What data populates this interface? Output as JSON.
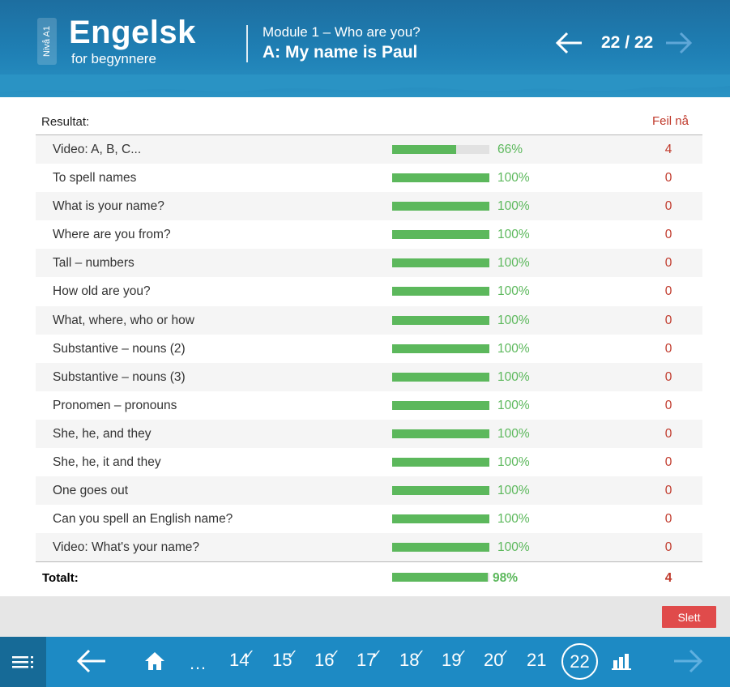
{
  "header": {
    "level": "Nivå A1",
    "course_title": "Engelsk",
    "course_subtitle": "for begynnere",
    "module": "Module 1 – Who are you?",
    "lesson": "A: My name is Paul",
    "page_counter": "22 / 22",
    "prev_icon": "arrow-left-icon",
    "next_icon": "arrow-right-icon"
  },
  "results": {
    "heading": "Resultat:",
    "errors_heading": "Feil nå",
    "rows": [
      {
        "name": "Video: A, B, C...",
        "progress": 0.66,
        "percent": "66%",
        "errors": "4"
      },
      {
        "name": "To spell names",
        "progress": 1.0,
        "percent": "100%",
        "errors": "0"
      },
      {
        "name": "What is your name?",
        "progress": 1.0,
        "percent": "100%",
        "errors": "0"
      },
      {
        "name": "Where are you from?",
        "progress": 1.0,
        "percent": "100%",
        "errors": "0"
      },
      {
        "name": "Tall – numbers",
        "progress": 1.0,
        "percent": "100%",
        "errors": "0"
      },
      {
        "name": "How old are you?",
        "progress": 1.0,
        "percent": "100%",
        "errors": "0"
      },
      {
        "name": "What, where, who or how",
        "progress": 1.0,
        "percent": "100%",
        "errors": "0"
      },
      {
        "name": "Substantive – nouns (2)",
        "progress": 1.0,
        "percent": "100%",
        "errors": "0"
      },
      {
        "name": "Substantive – nouns (3)",
        "progress": 1.0,
        "percent": "100%",
        "errors": "0"
      },
      {
        "name": "Pronomen – pronouns",
        "progress": 1.0,
        "percent": "100%",
        "errors": "0"
      },
      {
        "name": "She, he, and they",
        "progress": 1.0,
        "percent": "100%",
        "errors": "0"
      },
      {
        "name": "She, he, it and they",
        "progress": 1.0,
        "percent": "100%",
        "errors": "0"
      },
      {
        "name": "One goes out",
        "progress": 1.0,
        "percent": "100%",
        "errors": "0"
      },
      {
        "name": "Can you spell an English name?",
        "progress": 1.0,
        "percent": "100%",
        "errors": "0"
      },
      {
        "name": "Video: What's your name?",
        "progress": 1.0,
        "percent": "100%",
        "errors": "0"
      }
    ],
    "total": {
      "name": "Totalt:",
      "progress": 0.98,
      "percent": "98%",
      "errors": "4"
    }
  },
  "actions": {
    "delete_label": "Slett"
  },
  "bottom_nav": {
    "menu_icon": "menu-list-icon",
    "back_icon": "arrow-left-icon",
    "home_icon": "home-icon",
    "ellipsis": "…",
    "pages": [
      {
        "label": "14",
        "done": true
      },
      {
        "label": "15",
        "done": true
      },
      {
        "label": "16",
        "done": true
      },
      {
        "label": "17",
        "done": true
      },
      {
        "label": "18",
        "done": true
      },
      {
        "label": "19",
        "done": true
      },
      {
        "label": "20",
        "done": true
      },
      {
        "label": "21",
        "done": false
      }
    ],
    "current_page": "22",
    "stats_icon": "bar-chart-icon",
    "forward_icon": "arrow-right-icon"
  },
  "colors": {
    "header_blue": "#1f80b5",
    "nav_blue": "#1d8ac4",
    "progress_green": "#5cb85c",
    "error_red": "#c0392b",
    "delete_red": "#e04b4b"
  }
}
